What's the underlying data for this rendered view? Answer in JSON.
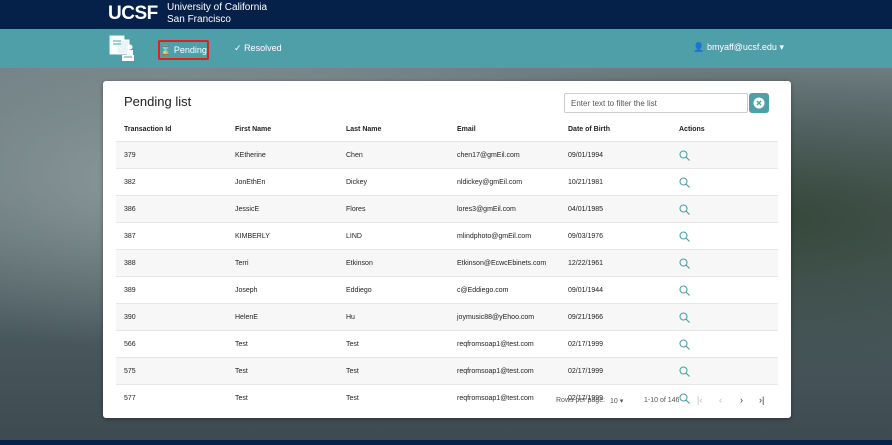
{
  "header": {
    "logo": "UCSF",
    "university_line1": "University of California",
    "university_line2": "San Francisco"
  },
  "nav": {
    "pending_label": "Pending",
    "resolved_label": "Resolved",
    "user_email": "bmyaff@ucsf.edu"
  },
  "card": {
    "title": "Pending list",
    "filter_placeholder": "Enter text to filter the list"
  },
  "table": {
    "columns": [
      "Transaction Id",
      "First Name",
      "Last Name",
      "Email",
      "Date of Birth",
      "Actions"
    ],
    "rows": [
      [
        "379",
        "KEtherine",
        "Chen",
        "chen17@gmEil.com",
        "09/01/1994"
      ],
      [
        "382",
        "JonEthEn",
        "Dickey",
        "nldickey@gmEil.com",
        "10/21/1981"
      ],
      [
        "386",
        "JessicE",
        "Flores",
        "lores3@gmEil.com",
        "04/01/1985"
      ],
      [
        "387",
        "KIMBERLY",
        "LIND",
        "mlindphoto@gmEil.com",
        "09/03/1976"
      ],
      [
        "388",
        "Terri",
        "Etkinson",
        "Etkinson@EcwcEbinets.com",
        "12/22/1961"
      ],
      [
        "389",
        "Joseph",
        "Eddiego",
        "c@Eddiego.com",
        "09/01/1944"
      ],
      [
        "390",
        "HelenE",
        "Hu",
        "joymusic88@yEhoo.com",
        "09/21/1966"
      ],
      [
        "566",
        "Test",
        "Test",
        "reqfromsoap1@test.com",
        "02/17/1999"
      ],
      [
        "575",
        "Test",
        "Test",
        "reqfromsoap1@test.com",
        "02/17/1999"
      ],
      [
        "577",
        "Test",
        "Test",
        "reqfromsoap1@test.com",
        "02/17/1999"
      ]
    ]
  },
  "pagination": {
    "rows_per_page_label": "Rows per page:",
    "rows_per_page_value": "10",
    "range_text": "1-10 of 146"
  },
  "colors": {
    "top_bar": "#052049",
    "nav_bar": "#4f9fa8",
    "highlight_border": "#e02020"
  }
}
